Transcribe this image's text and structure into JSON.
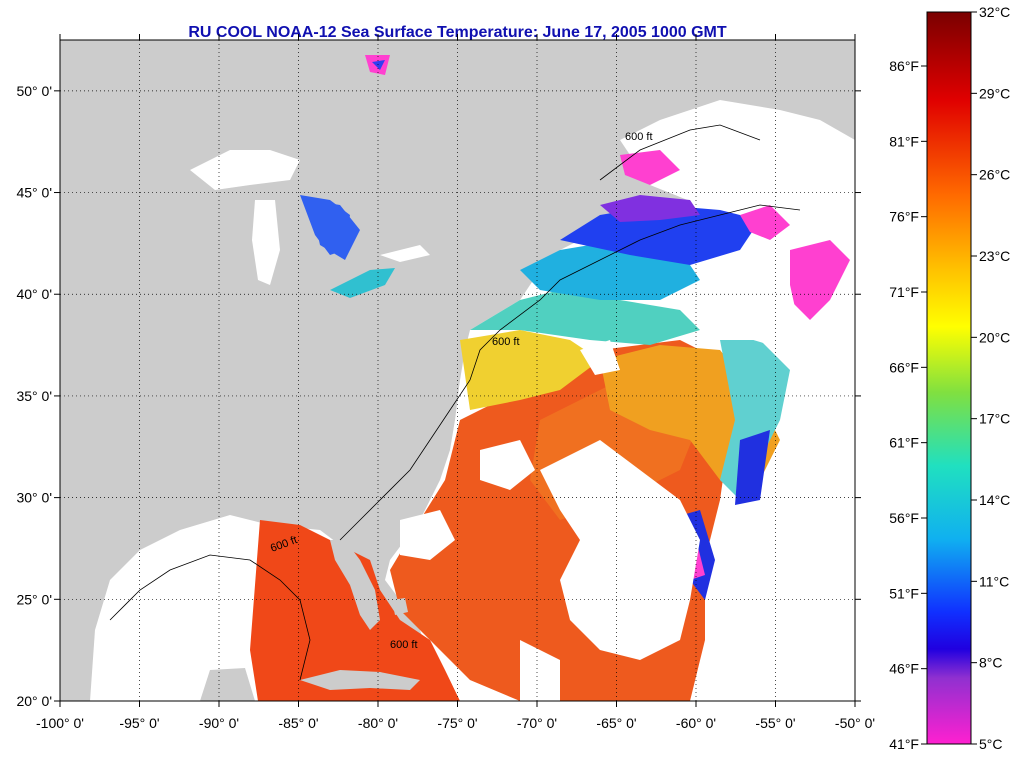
{
  "title": "RU COOL  NOAA-12  Sea Surface Temperature:  June 17, 2005 1000 GMT",
  "map": {
    "lon_range": [
      -100,
      -50
    ],
    "lat_range": [
      20,
      52.5
    ],
    "x_ticks": [
      "-100° 0'",
      "-95° 0'",
      "-90° 0'",
      "-85° 0'",
      "-80° 0'",
      "-75° 0'",
      "-70° 0'",
      "-65° 0'",
      "-60° 0'",
      "-55° 0'",
      "-50° 0'"
    ],
    "y_ticks": [
      "20° 0'",
      "25° 0'",
      "30° 0'",
      "35° 0'",
      "40° 0'",
      "45° 0'",
      "50° 0'"
    ],
    "contour_label": "600 ft",
    "colors": {
      "land": "#cccccc",
      "cloud": "#ffffff",
      "warm": "#f06020",
      "hot": "#e83018",
      "mild": "#f0b020",
      "cool": "#40d0e0",
      "cold": "#2040f0",
      "cold_pink": "#ff40d0"
    }
  },
  "colorbar": {
    "celsius_labels": [
      "32°C",
      "29°C",
      "26°C",
      "23°C",
      "20°C",
      "17°C",
      "14°C",
      "11°C",
      "8°C",
      "5°C"
    ],
    "fahrenheit_labels": [
      "86°F",
      "81°F",
      "76°F",
      "71°F",
      "66°F",
      "61°F",
      "56°F",
      "51°F",
      "46°F",
      "41°F"
    ],
    "range_c": [
      5,
      32
    ]
  }
}
